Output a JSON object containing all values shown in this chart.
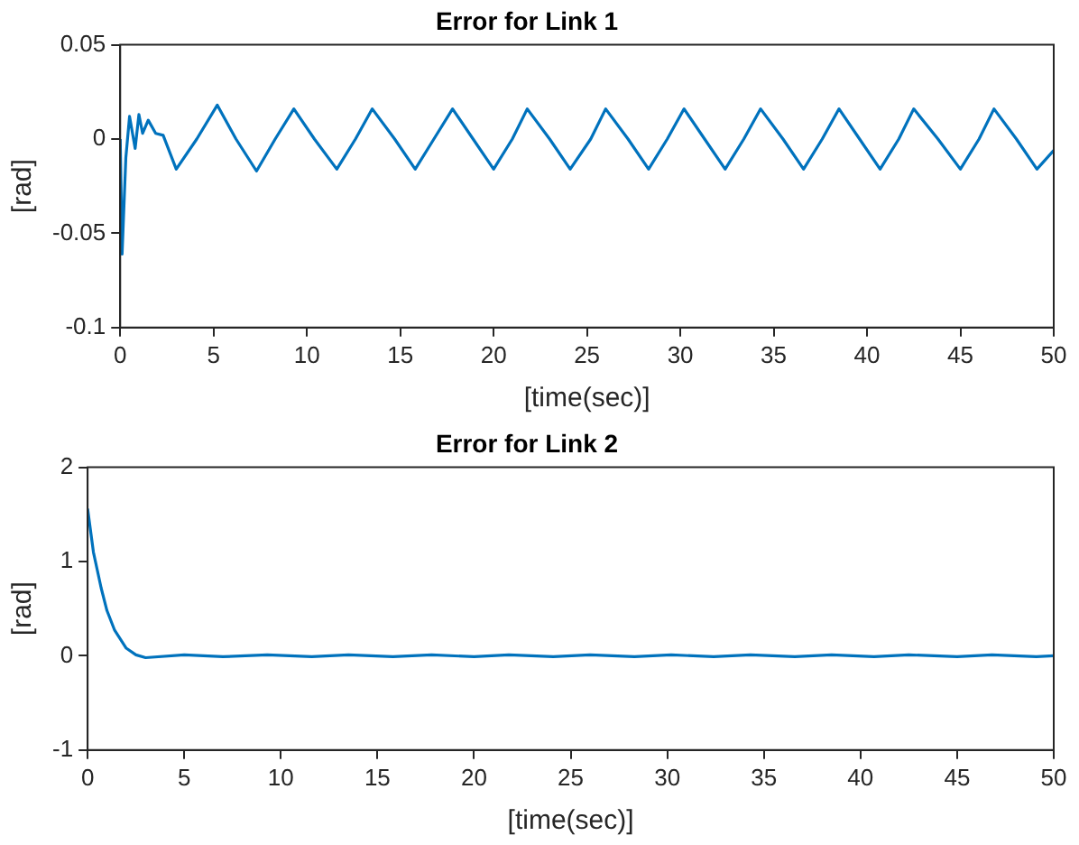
{
  "chart_data": [
    {
      "type": "line",
      "title": "Error for Link 1",
      "xlabel": "[time(sec)]",
      "ylabel": "[rad]",
      "xlim": [
        0,
        50
      ],
      "xticks": [
        0,
        5,
        10,
        15,
        20,
        25,
        30,
        35,
        40,
        45,
        50
      ],
      "ylim": [
        -0.1,
        0.05
      ],
      "yticks": [
        -0.1,
        -0.05,
        0,
        0.05
      ],
      "grid": false,
      "legend": false,
      "marker": "none",
      "line_style": "solid",
      "series": [
        {
          "color": "#0072bd",
          "x": [
            0,
            0.1,
            0.3,
            0.5,
            0.8,
            1.0,
            1.2,
            1.5,
            1.9,
            2.3,
            3.0,
            4.1,
            5.2,
            6.2,
            7.3,
            8.3,
            9.3,
            10.4,
            11.6,
            12.6,
            13.5,
            14.7,
            15.8,
            16.8,
            17.8,
            18.9,
            20.0,
            21,
            21.8,
            23,
            24.1,
            25.2,
            26.0,
            27.2,
            28.3,
            29.3,
            30.2,
            31.3,
            32.4,
            33.4,
            34.3,
            35.5,
            36.6,
            37.6,
            38.5,
            39.6,
            40.7,
            41.7,
            42.5,
            43.8,
            45.0,
            46,
            46.8,
            48,
            49.1,
            50
          ],
          "values": [
            0,
            -0.061,
            -0.01,
            0.012,
            -0.005,
            0.013,
            0.003,
            0.01,
            0.003,
            0.002,
            -0.016,
            0,
            0.018,
            0,
            -0.017,
            0,
            0.016,
            0,
            -0.016,
            0,
            0.016,
            0,
            -0.016,
            0,
            0.016,
            0,
            -0.016,
            0,
            0.016,
            0,
            -0.016,
            0,
            0.016,
            0,
            -0.016,
            0,
            0.016,
            0,
            -0.016,
            0,
            0.016,
            0,
            -0.016,
            0,
            0.016,
            0,
            -0.016,
            0,
            0.016,
            0,
            -0.016,
            0,
            0.016,
            0,
            -0.016,
            -0.006
          ]
        }
      ]
    },
    {
      "type": "line",
      "title": "Error for Link 2",
      "xlabel": "[time(sec)]",
      "ylabel": "[rad]",
      "xlim": [
        0,
        50
      ],
      "xticks": [
        0,
        5,
        10,
        15,
        20,
        25,
        30,
        35,
        40,
        45,
        50
      ],
      "ylim": [
        -1,
        2
      ],
      "yticks": [
        -1,
        0,
        1,
        2
      ],
      "grid": false,
      "legend": false,
      "marker": "none",
      "line_style": "solid",
      "series": [
        {
          "color": "#0072bd",
          "x": [
            0,
            0.3,
            0.7,
            1.0,
            1.4,
            2.0,
            2.5,
            3.0,
            5,
            7,
            9.3,
            11.6,
            13.5,
            15.8,
            17.8,
            20,
            21.8,
            24.1,
            26,
            28.3,
            30.2,
            32.4,
            34.3,
            36.6,
            38.5,
            40.7,
            42.5,
            45,
            46.8,
            49.1,
            50
          ],
          "values": [
            1.56,
            1.1,
            0.72,
            0.48,
            0.27,
            0.08,
            0.01,
            -0.02,
            0.01,
            -0.01,
            0.01,
            -0.01,
            0.01,
            -0.01,
            0.01,
            -0.01,
            0.01,
            -0.01,
            0.01,
            -0.01,
            0.01,
            -0.01,
            0.01,
            -0.01,
            0.01,
            -0.01,
            0.01,
            -0.01,
            0.01,
            -0.01,
            0
          ]
        }
      ]
    }
  ]
}
